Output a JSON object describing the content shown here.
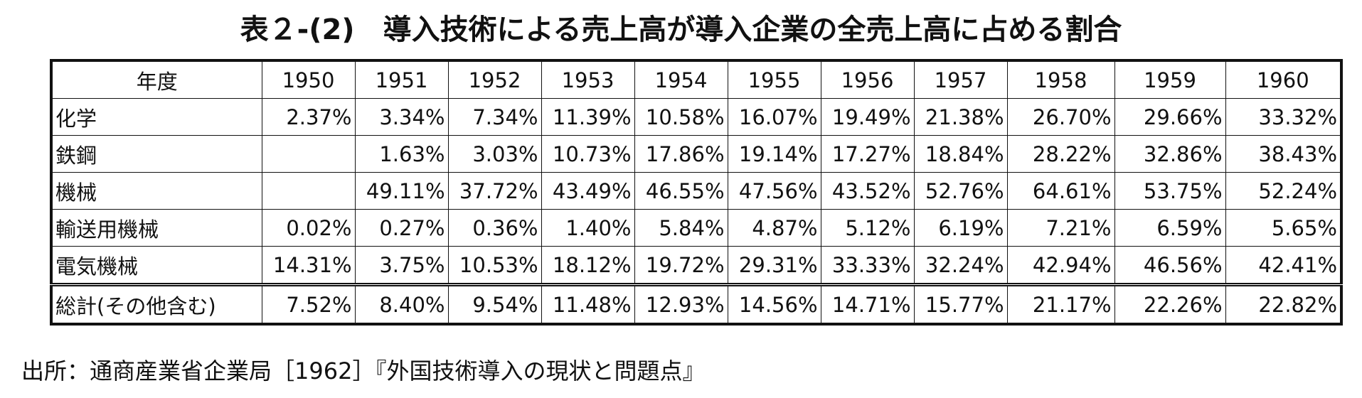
{
  "title": "表２-(2)　導入技術による売上高が導入企業の全売上高に占める割合",
  "table": {
    "header": [
      "年度",
      "1950",
      "1951",
      "1952",
      "1953",
      "1954",
      "1955",
      "1956",
      "1957",
      "1958",
      "1959",
      "1960"
    ],
    "rows": [
      [
        "化学",
        "2.37%",
        "3.34%",
        "7.34%",
        "11.39%",
        "10.58%",
        "16.07%",
        "19.49%",
        "21.38%",
        "26.70%",
        "29.66%",
        "33.32%"
      ],
      [
        "鉄鋼",
        null,
        "1.63%",
        "3.03%",
        "10.73%",
        "17.86%",
        "19.14%",
        "17.27%",
        "18.84%",
        "28.22%",
        "32.86%",
        "38.43%"
      ],
      [
        "機械",
        null,
        "49.11%",
        "37.72%",
        "43.49%",
        "46.55%",
        "47.56%",
        "43.52%",
        "52.76%",
        "64.61%",
        "53.75%",
        "52.24%"
      ],
      [
        "輸送用機械",
        "0.02%",
        "0.27%",
        "0.36%",
        "1.40%",
        "5.84%",
        "4.87%",
        "5.12%",
        "6.19%",
        "7.21%",
        "6.59%",
        "5.65%"
      ],
      [
        "電気機械",
        "14.31%",
        "3.75%",
        "10.53%",
        "18.12%",
        "19.72%",
        "29.31%",
        "33.33%",
        "32.24%",
        "42.94%",
        "46.56%",
        "42.41%"
      ],
      [
        "総計(その他含む)",
        "7.52%",
        "8.40%",
        "9.54%",
        "11.48%",
        "12.93%",
        "14.56%",
        "14.71%",
        "15.77%",
        "21.17%",
        "22.26%",
        "22.82%"
      ]
    ]
  },
  "source": "出所：通商産業省企業局［1962］『外国技術導入の現状と問題点』"
}
